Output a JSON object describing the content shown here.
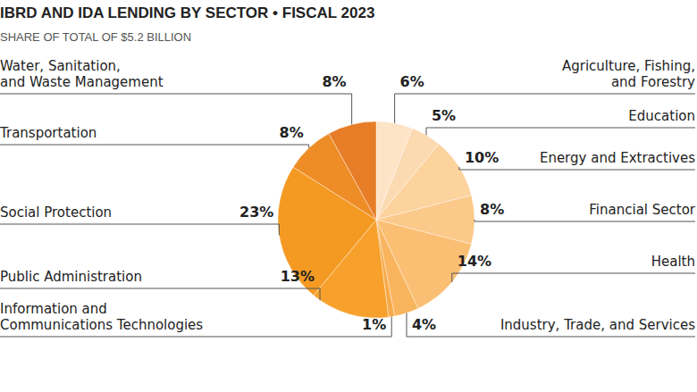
{
  "chart_data": {
    "type": "pie",
    "title": "IBRD AND IDA LENDING BY SECTOR • FISCAL 2023",
    "subtitle": "SHARE OF TOTAL OF $5.2 BILLION",
    "categories": [
      "Agriculture, Fishing,\nand Forestry",
      "Education",
      "Energy and Extractives",
      "Financial Sector",
      "Health",
      "Industry, Trade, and Services",
      "Information and\nCommunications Technologies",
      "Public Administration",
      "Social Protection",
      "Transportation",
      "Water, Sanitation,\nand Waste Management"
    ],
    "values": [
      6,
      5,
      10,
      8,
      14,
      4,
      1,
      13,
      23,
      8,
      8
    ],
    "value_labels": [
      "6%",
      "5%",
      "10%",
      "8%",
      "14%",
      "4%",
      "1%",
      "13%",
      "23%",
      "8%",
      "8%"
    ],
    "colors": [
      "#fde4c6",
      "#fcdab1",
      "#fcd29d",
      "#fbc98a",
      "#fbbf74",
      "#f9b45e",
      "#f8aa4a",
      "#f7a12c",
      "#f49a22",
      "#ee8c26",
      "#e77d27"
    ],
    "data_labels": true
  }
}
